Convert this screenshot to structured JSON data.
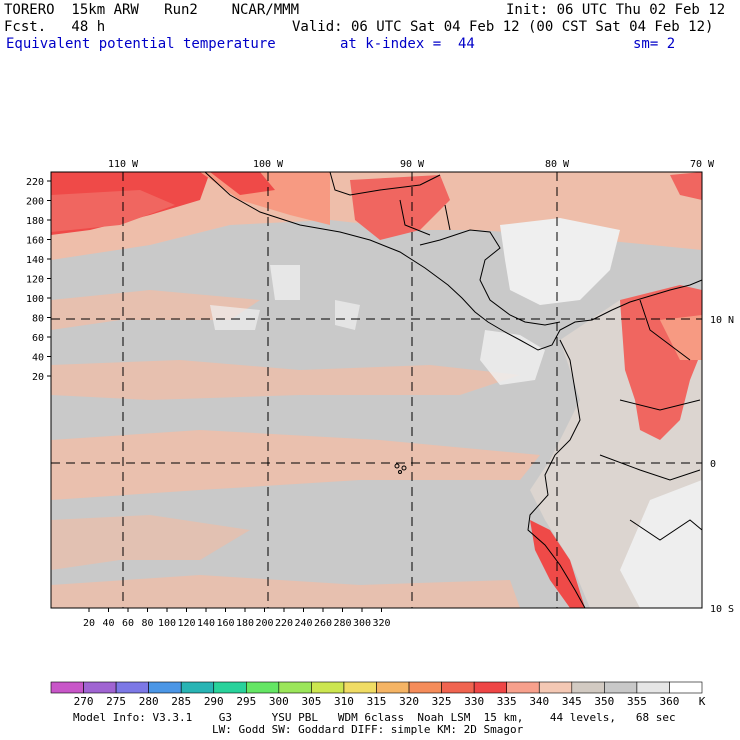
{
  "header": {
    "model": "TORERO  15km ARW   Run2    NCAR/MMM",
    "init": "Init: 06 UTC Thu 02 Feb 12",
    "forecast": "Fcst.   48 h",
    "valid": "Valid: 06 UTC Sat 04 Feb 12 (00 CST Sat 04 Feb 12)",
    "field": "Equivalent potential temperature",
    "level": "at k-index =  44",
    "smoothing": "sm= 2"
  },
  "map": {
    "top_lon_labels": [
      "110 W",
      "100 W",
      "90 W",
      "80 W",
      "70 W"
    ],
    "right_lat_labels": [
      "10 N",
      "0",
      "10 S"
    ],
    "y_ticks": [
      "220",
      "200",
      "180",
      "160",
      "140",
      "120",
      "100",
      "80",
      "60",
      "40",
      "20"
    ],
    "x_ticks": [
      "20",
      "40",
      "60",
      "80",
      "100",
      "120",
      "140",
      "160",
      "180",
      "200",
      "220",
      "240",
      "260",
      "280",
      "300",
      "320"
    ],
    "colors": {
      "background": "#c9c9c9",
      "c340": "#f4bca4",
      "c335": "#f79a82",
      "c330": "#f06660",
      "c325": "#ef4a48",
      "c345": "#dcd5d0",
      "c360": "#efefef"
    }
  },
  "colorbar": {
    "labels": [
      "270",
      "275",
      "280",
      "285",
      "290",
      "295",
      "300",
      "305",
      "310",
      "315",
      "320",
      "325",
      "330",
      "335",
      "340",
      "345",
      "350",
      "355",
      "360"
    ],
    "unit": "K",
    "colors": [
      "#c856c8",
      "#a064d2",
      "#7c78e6",
      "#4b96e6",
      "#28b4b4",
      "#28d29b",
      "#64e664",
      "#9be65a",
      "#cce650",
      "#f0dc64",
      "#f5b464",
      "#f58c5a",
      "#f06450",
      "#ef4646",
      "#f7a08c",
      "#f4c8b4",
      "#d2cac2",
      "#c8c8c8",
      "#e6e6e6",
      "#ffffff"
    ]
  },
  "footer": {
    "line1": "Model Info: V3.3.1    G3      YSU PBL   WDM 6class  Noah LSM  15 km,    44 levels,   68 sec",
    "line2": "LW: Godd SW: Goddard DIFF: simple KM: 2D Smagor"
  }
}
